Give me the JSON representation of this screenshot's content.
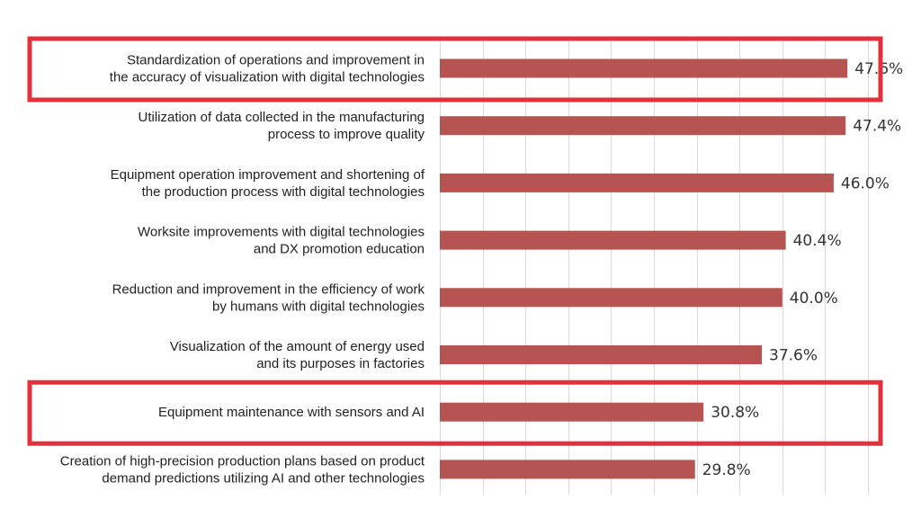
{
  "chart_data": {
    "type": "bar",
    "orientation": "horizontal",
    "categories": [
      [
        "Standardization of operations and improvement in",
        "the accuracy of visualization with digital technologies"
      ],
      [
        "Utilization of data collected in the manufacturing",
        "process to improve quality"
      ],
      [
        "Equipment operation improvement and shortening of",
        "the production process with digital technologies"
      ],
      [
        "Worksite improvements with digital technologies",
        "and DX promotion education"
      ],
      [
        "Reduction and improvement in the efficiency of work",
        "by humans with digital technologies"
      ],
      [
        "Visualization of the amount of energy used",
        "and its purposes in factories"
      ],
      [
        "Equipment maintenance with sensors and AI"
      ],
      [
        "Creation of high-precision production plans based on product",
        "demand predictions utilizing AI and other technologies"
      ]
    ],
    "values": [
      47.6,
      47.4,
      46.0,
      40.4,
      40.0,
      37.6,
      30.8,
      29.8
    ],
    "value_labels": [
      "47.6%",
      "47.4%",
      "46.0%",
      "40.4%",
      "40.0%",
      "37.6%",
      "30.8%",
      "29.8%"
    ],
    "xlim": [
      0,
      50
    ],
    "x_gridlines": [
      0,
      5,
      10,
      15,
      20,
      25,
      30,
      35,
      40,
      45,
      50
    ],
    "grid": true,
    "legend": "none",
    "title": "",
    "xlabel": "",
    "ylabel": "",
    "highlighted_rows": [
      0,
      6
    ],
    "colors": {
      "bar": "#b55450",
      "highlight_box": "#e0323c",
      "grid": "#d9d9d9"
    }
  }
}
